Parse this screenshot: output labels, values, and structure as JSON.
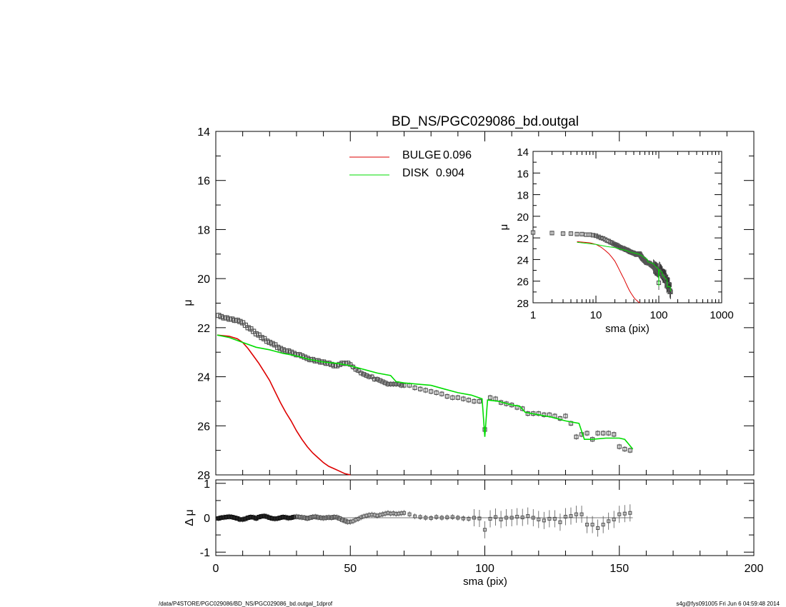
{
  "title": "BD_NS/PGC029086_bd.outgal",
  "footer": {
    "path": "/data/P4STORE/PGC029086/BD_NS/PGC029086_bd.outgal_1dprof",
    "stamp": "s4g@fys091005  Fri Jun  6 04:59:48 2014"
  },
  "colors": {
    "bulge": "#dd0000",
    "disk": "#00dd00",
    "data": "#555555",
    "axis": "#000000"
  },
  "chart_data": [
    {
      "panel": "main",
      "type": "line",
      "title": "BD_NS/PGC029086_bd.outgal",
      "xlabel": "",
      "ylabel": "μ",
      "xlim": [
        0,
        200
      ],
      "ylim": [
        28,
        14
      ],
      "yticks": [
        14,
        16,
        18,
        20,
        22,
        24,
        26,
        28
      ],
      "legend_position": "top-center",
      "legend": [
        {
          "label": "BULGE",
          "value": "0.096",
          "color": "#dd0000"
        },
        {
          "label": "DISK",
          "value": "0.904",
          "color": "#00dd00"
        }
      ],
      "series": [
        {
          "name": "BULGE",
          "color": "#dd0000",
          "x": [
            0.5,
            5,
            8,
            10,
            12,
            14,
            16,
            18,
            20,
            22,
            24,
            26,
            28,
            30,
            32,
            34,
            36,
            38,
            40,
            42,
            44,
            46,
            48,
            50
          ],
          "y": [
            22.3,
            22.35,
            22.45,
            22.6,
            22.85,
            23.15,
            23.45,
            23.8,
            24.15,
            24.6,
            25.05,
            25.45,
            25.8,
            26.2,
            26.55,
            26.85,
            27.1,
            27.3,
            27.5,
            27.65,
            27.75,
            27.85,
            27.95,
            28.0
          ]
        },
        {
          "name": "DISK",
          "color": "#00dd00",
          "x": [
            0.5,
            5,
            10,
            15,
            20,
            25,
            30,
            35,
            40,
            45,
            50,
            55,
            60,
            65,
            67,
            70,
            75,
            80,
            85,
            90,
            95,
            99,
            100,
            101,
            105,
            110,
            113,
            115,
            120,
            125,
            130,
            135,
            137,
            140,
            145,
            150,
            152,
            155
          ],
          "y": [
            22.3,
            22.4,
            22.6,
            22.8,
            22.9,
            23.05,
            23.15,
            23.3,
            23.4,
            23.45,
            23.55,
            23.7,
            23.85,
            23.95,
            24.2,
            24.25,
            24.3,
            24.35,
            24.5,
            24.65,
            24.75,
            24.9,
            26.45,
            24.95,
            25.0,
            25.15,
            25.2,
            25.45,
            25.55,
            25.65,
            25.8,
            25.9,
            26.55,
            26.55,
            26.5,
            26.5,
            26.55,
            26.95
          ]
        },
        {
          "name": "data",
          "x": [
            1,
            2,
            3,
            4,
            5,
            6,
            7,
            8,
            9,
            10,
            11,
            12,
            13,
            14,
            15,
            16,
            17,
            18,
            19,
            20,
            21,
            22,
            23,
            24,
            25,
            26,
            27,
            28,
            29,
            30,
            31,
            32,
            33,
            34,
            35,
            36,
            37,
            38,
            39,
            40,
            41,
            42,
            43,
            44,
            45,
            46,
            47,
            48,
            49,
            50,
            51,
            52,
            53,
            54,
            55,
            56,
            57,
            58,
            59,
            60,
            61,
            62,
            63,
            64,
            65,
            66,
            67,
            68,
            69,
            70,
            72,
            74,
            76,
            78,
            80,
            82,
            84,
            86,
            88,
            90,
            92,
            94,
            96,
            98,
            100,
            102,
            104,
            106,
            108,
            110,
            112,
            114,
            116,
            118,
            120,
            122,
            124,
            126,
            128,
            130,
            132,
            134,
            136,
            138,
            140,
            142,
            144,
            146,
            148,
            150,
            152,
            154
          ],
          "y": [
            21.5,
            21.55,
            21.6,
            21.6,
            21.65,
            21.65,
            21.7,
            21.7,
            21.75,
            21.8,
            21.9,
            22.0,
            22.05,
            22.15,
            22.25,
            22.3,
            22.4,
            22.45,
            22.55,
            22.6,
            22.65,
            22.7,
            22.8,
            22.85,
            22.9,
            22.95,
            22.95,
            23.0,
            23.05,
            23.1,
            23.1,
            23.15,
            23.2,
            23.25,
            23.3,
            23.3,
            23.35,
            23.35,
            23.4,
            23.4,
            23.45,
            23.45,
            23.5,
            23.55,
            23.55,
            23.5,
            23.45,
            23.45,
            23.45,
            23.5,
            23.6,
            23.7,
            23.75,
            23.85,
            23.9,
            23.95,
            24.0,
            24.0,
            24.1,
            24.1,
            24.15,
            24.2,
            24.25,
            24.3,
            24.3,
            24.3,
            24.3,
            24.3,
            24.35,
            24.35,
            24.35,
            24.45,
            24.5,
            24.55,
            24.6,
            24.65,
            24.7,
            24.8,
            24.85,
            24.85,
            24.9,
            24.95,
            25.0,
            25.0,
            26.15,
            24.85,
            24.9,
            25.05,
            25.1,
            25.15,
            25.25,
            25.3,
            25.5,
            25.5,
            25.5,
            25.55,
            25.55,
            25.6,
            25.7,
            25.6,
            25.9,
            26.45,
            26.35,
            26.3,
            26.55,
            26.3,
            26.3,
            26.3,
            26.35,
            26.85,
            26.95,
            27.0
          ]
        }
      ]
    },
    {
      "panel": "residual",
      "type": "scatter",
      "xlabel": "sma (pix)",
      "ylabel": "Δ μ",
      "xlim": [
        0,
        200
      ],
      "ylim": [
        -1.1,
        1.1
      ],
      "xticks": [
        0,
        50,
        100,
        150,
        200
      ],
      "yticks": [
        -1,
        0,
        1
      ],
      "series": [
        {
          "name": "residual",
          "x": [
            1,
            2,
            3,
            4,
            5,
            6,
            7,
            8,
            9,
            10,
            11,
            12,
            13,
            14,
            15,
            16,
            17,
            18,
            19,
            20,
            21,
            22,
            23,
            24,
            25,
            26,
            27,
            28,
            29,
            30,
            31,
            32,
            33,
            34,
            35,
            36,
            37,
            38,
            39,
            40,
            41,
            42,
            43,
            44,
            45,
            46,
            47,
            48,
            49,
            50,
            51,
            52,
            53,
            54,
            55,
            56,
            57,
            58,
            59,
            60,
            61,
            62,
            63,
            64,
            65,
            66,
            67,
            68,
            69,
            70,
            72,
            74,
            76,
            78,
            80,
            82,
            84,
            86,
            88,
            90,
            92,
            94,
            96,
            98,
            100,
            102,
            104,
            106,
            108,
            110,
            112,
            114,
            116,
            118,
            120,
            122,
            124,
            126,
            128,
            130,
            132,
            134,
            136,
            138,
            140,
            142,
            144,
            146,
            148,
            150,
            152,
            154
          ],
          "y": [
            -0.02,
            0.0,
            0.01,
            0.02,
            0.03,
            0.02,
            0.0,
            -0.02,
            -0.05,
            -0.05,
            -0.03,
            0.0,
            0.02,
            0.01,
            -0.02,
            0.02,
            0.04,
            0.05,
            0.03,
            0.0,
            -0.02,
            -0.03,
            -0.02,
            0.0,
            0.02,
            0.01,
            -0.01,
            0.0,
            0.02,
            0.03,
            0.02,
            0.01,
            0.0,
            -0.02,
            0.0,
            0.02,
            0.03,
            0.01,
            0.0,
            -0.01,
            0.0,
            0.01,
            0.0,
            0.02,
            0.01,
            -0.02,
            -0.06,
            -0.09,
            -0.12,
            -0.12,
            -0.1,
            -0.06,
            -0.03,
            0.01,
            0.04,
            0.06,
            0.08,
            0.09,
            0.08,
            0.06,
            0.08,
            0.1,
            0.12,
            0.14,
            0.12,
            0.13,
            0.11,
            0.12,
            0.13,
            0.14,
            0.1,
            0.04,
            0.02,
            0.0,
            -0.01,
            0.02,
            0.0,
            0.01,
            0.02,
            0.0,
            -0.02,
            -0.03,
            0.0,
            -0.02,
            -0.35,
            -0.03,
            0.02,
            -0.05,
            0.0,
            0.0,
            0.03,
            0.01,
            0.05,
            0.0,
            -0.05,
            -0.08,
            -0.03,
            -0.03,
            -0.13,
            0.03,
            0.05,
            0.1,
            0.1,
            -0.2,
            -0.2,
            -0.3,
            -0.2,
            -0.1,
            -0.05,
            0.1,
            0.12,
            0.14
          ]
        }
      ]
    },
    {
      "panel": "inset",
      "type": "line",
      "xscale": "log",
      "xlabel": "sma (pix)",
      "ylabel": "μ",
      "xlim": [
        1,
        1000
      ],
      "ylim": [
        28,
        14
      ],
      "xticks": [
        1,
        10,
        100,
        1000
      ],
      "yticks": [
        14,
        16,
        18,
        20,
        22,
        24,
        26,
        28
      ]
    }
  ]
}
